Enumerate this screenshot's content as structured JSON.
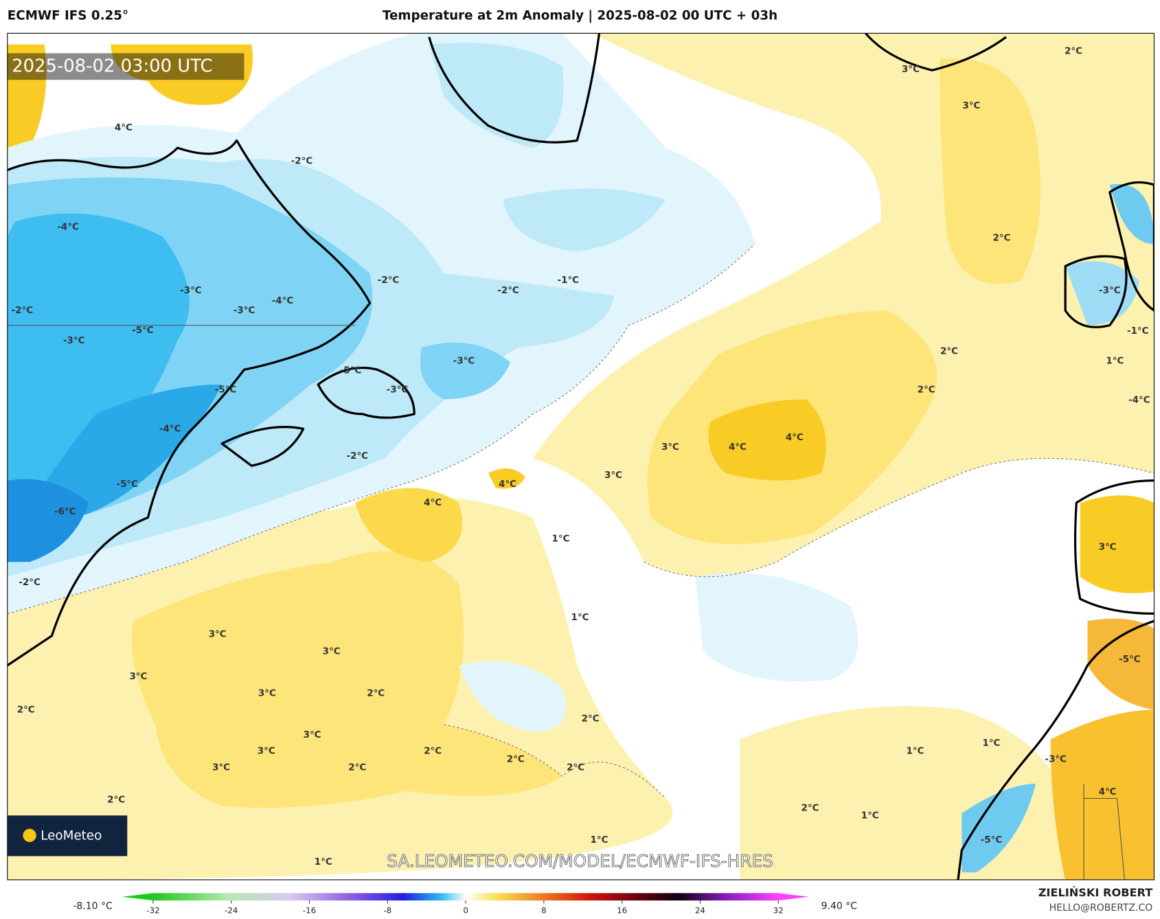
{
  "header": {
    "model": "ECMWF IFS 0.25°",
    "title": "Temperature at 2m Anomaly | 2025-08-02 00 UTC + 03h"
  },
  "map": {
    "timestamp": "2025-08-02 03:00 UTC",
    "labels": [
      "4°C",
      "-2°C",
      "-4°C",
      "-3°C",
      "-4°C",
      "-3°C",
      "-2°C",
      "-5°C",
      "-3°C",
      "-2°C",
      "-2°C",
      "-1°C",
      "-3°C",
      "-5°C",
      "-3°C",
      "-5°C",
      "-4°C",
      "-2°C",
      "-5°C",
      "-6°C",
      "-2°C",
      "4°C",
      "4°C",
      "3°C",
      "3°C",
      "4°C",
      "4°C",
      "1°C",
      "1°C",
      "3°C",
      "3°C",
      "3°C",
      "3°C",
      "2°C",
      "2°C",
      "2°C",
      "3°C",
      "3°C",
      "2°C",
      "2°C",
      "3°C",
      "2°C",
      "2°C",
      "2°C",
      "1°C",
      "1°C",
      "2°C",
      "1°C",
      "1°C",
      "1°C",
      "-3°C",
      "4°C",
      "-5°C",
      "-5°C",
      "3°C",
      "2°C",
      "3°C",
      "3°C",
      "2°C",
      "2°C",
      "2°C",
      "1°C",
      "-1°C",
      "-4°C",
      "-3°C"
    ],
    "watermark": "SA.LEOMETEO.COM/MODEL/ECMWF-IFS-HRES",
    "logo": "LeoMeteo"
  },
  "colorbar": {
    "min_label": "-8.10 °C",
    "max_label": "9.40 °C",
    "lim": [
      -32,
      32
    ],
    "ticks": [
      -32,
      -24,
      -16,
      -8,
      0,
      8,
      16,
      24,
      32
    ]
  },
  "footer": {
    "author": "ZIELIŃSKI ROBERT",
    "contact": "HELLO@ROBERTZ.CO"
  }
}
